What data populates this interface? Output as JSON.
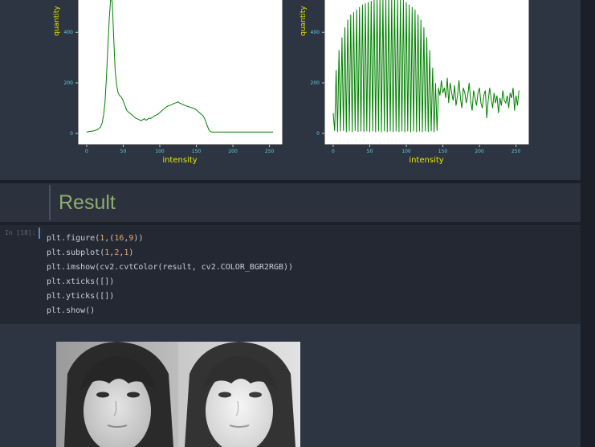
{
  "histograms": [
    {
      "ylabel": "quantity",
      "xlabel": "intensity",
      "xticks": [
        "0",
        "50",
        "100",
        "150",
        "200",
        "250"
      ],
      "yticks": [
        "0",
        "200",
        "400"
      ]
    },
    {
      "ylabel": "quantity",
      "xlabel": "intensity",
      "xticks": [
        "0",
        "50",
        "100",
        "150",
        "200",
        "250"
      ],
      "yticks": [
        "0",
        "200",
        "400"
      ]
    }
  ],
  "markdown": {
    "heading": "Result"
  },
  "code_cell": {
    "prompt": "In [18]:",
    "lines": [
      [
        {
          "t": "plt.figure("
        },
        {
          "t": "1",
          "c": "num"
        },
        {
          "t": ",("
        },
        {
          "t": "16",
          "c": "num"
        },
        {
          "t": ","
        },
        {
          "t": "9",
          "c": "num"
        },
        {
          "t": "))"
        }
      ],
      [
        {
          "t": "plt.subplot("
        },
        {
          "t": "1",
          "c": "num"
        },
        {
          "t": ","
        },
        {
          "t": "2",
          "c": "num"
        },
        {
          "t": ","
        },
        {
          "t": "1",
          "c": "num"
        },
        {
          "t": ")"
        }
      ],
      [
        {
          "t": "plt.imshow(cv2.cvtColor(result, cv2.COLOR_BGR2RGB))"
        }
      ],
      [
        {
          "t": "plt.xticks([])"
        }
      ],
      [
        {
          "t": "plt.yticks([])"
        }
      ],
      [
        {
          "t": "plt.show()"
        }
      ]
    ]
  },
  "colors": {
    "plot_line": "#008000",
    "axis_label": "#e8e800",
    "tick_label": "#5fd0e0",
    "heading": "#8dae6c",
    "number": "#e9a56b"
  },
  "chart_data": [
    {
      "type": "line",
      "xlabel": "intensity",
      "ylabel": "quantity",
      "xlim": [
        -12,
        268
      ],
      "ylim": [
        -45,
        560
      ],
      "x": [
        0,
        5,
        10,
        15,
        19,
        21,
        23,
        25,
        27,
        29,
        31,
        33,
        35,
        37,
        39,
        41,
        43,
        45,
        47,
        49,
        51,
        53,
        55,
        57,
        59,
        61,
        63,
        65,
        67,
        69,
        71,
        73,
        75,
        77,
        79,
        81,
        83,
        85,
        87,
        89,
        91,
        93,
        95,
        97,
        99,
        101,
        103,
        105,
        107,
        109,
        111,
        113,
        115,
        117,
        119,
        121,
        123,
        125,
        127,
        129,
        131,
        133,
        135,
        137,
        139,
        141,
        143,
        145,
        147,
        149,
        151,
        153,
        155,
        157,
        159,
        161,
        163,
        165,
        167,
        169,
        171,
        173,
        175,
        177,
        179,
        181,
        183,
        185,
        187,
        189,
        191,
        193,
        195,
        197,
        199,
        201,
        203,
        205,
        210,
        220,
        230,
        240,
        255
      ],
      "values": [
        5,
        8,
        10,
        15,
        25,
        40,
        70,
        120,
        220,
        340,
        460,
        540,
        520,
        380,
        250,
        190,
        160,
        150,
        145,
        135,
        120,
        105,
        90,
        85,
        80,
        75,
        70,
        65,
        60,
        58,
        55,
        52,
        50,
        55,
        58,
        52,
        55,
        60,
        58,
        62,
        65,
        70,
        72,
        75,
        80,
        85,
        90,
        95,
        100,
        105,
        108,
        110,
        112,
        115,
        118,
        120,
        122,
        125,
        120,
        118,
        115,
        112,
        110,
        108,
        106,
        104,
        102,
        100,
        98,
        95,
        90,
        85,
        80,
        75,
        70,
        60,
        45,
        30,
        15,
        8,
        5,
        5,
        5,
        5,
        5,
        5,
        5,
        5,
        5,
        5,
        5,
        5,
        5,
        5,
        5,
        5,
        5,
        5,
        5,
        5,
        5,
        5,
        5
      ]
    },
    {
      "type": "line",
      "xlabel": "intensity",
      "ylabel": "quantity",
      "xlim": [
        -12,
        268
      ],
      "ylim": [
        -45,
        560
      ],
      "x": [
        0,
        2,
        4,
        6,
        8,
        10,
        12,
        14,
        16,
        18,
        20,
        22,
        24,
        26,
        28,
        30,
        32,
        34,
        36,
        38,
        40,
        42,
        44,
        46,
        48,
        50,
        52,
        54,
        56,
        58,
        60,
        62,
        64,
        66,
        68,
        70,
        72,
        74,
        76,
        78,
        80,
        82,
        84,
        86,
        88,
        90,
        92,
        94,
        96,
        98,
        100,
        102,
        104,
        106,
        108,
        110,
        112,
        114,
        116,
        118,
        120,
        122,
        124,
        126,
        128,
        130,
        132,
        134,
        136,
        138,
        140,
        142,
        144,
        146,
        148,
        150,
        152,
        154,
        156,
        158,
        160,
        162,
        164,
        166,
        168,
        170,
        172,
        174,
        176,
        178,
        180,
        182,
        184,
        186,
        188,
        190,
        192,
        194,
        196,
        198,
        200,
        202,
        204,
        206,
        208,
        210,
        212,
        214,
        216,
        218,
        220,
        222,
        224,
        226,
        228,
        230,
        232,
        234,
        236,
        238,
        240,
        242,
        244,
        246,
        248,
        250,
        252,
        254
      ],
      "values": [
        80,
        10,
        250,
        5,
        330,
        8,
        380,
        10,
        420,
        5,
        450,
        8,
        470,
        5,
        480,
        10,
        490,
        6,
        500,
        8,
        510,
        5,
        515,
        8,
        520,
        5,
        525,
        8,
        530,
        5,
        530,
        8,
        535,
        5,
        535,
        8,
        535,
        5,
        535,
        8,
        535,
        5,
        535,
        8,
        535,
        5,
        530,
        8,
        530,
        5,
        520,
        8,
        510,
        5,
        500,
        8,
        490,
        5,
        470,
        8,
        450,
        5,
        420,
        8,
        380,
        5,
        330,
        8,
        260,
        5,
        200,
        10,
        180,
        150,
        210,
        160,
        180,
        140,
        220,
        120,
        200,
        160,
        130,
        190,
        110,
        150,
        210,
        140,
        100,
        180,
        160,
        120,
        150,
        200,
        130,
        90,
        170,
        140,
        110,
        160,
        180,
        120,
        100,
        150,
        170,
        60,
        130,
        180,
        140,
        100,
        160,
        120,
        150,
        80,
        140,
        110,
        170,
        130,
        120,
        150,
        100,
        160,
        140,
        180,
        90,
        150,
        110,
        170
      ]
    }
  ]
}
